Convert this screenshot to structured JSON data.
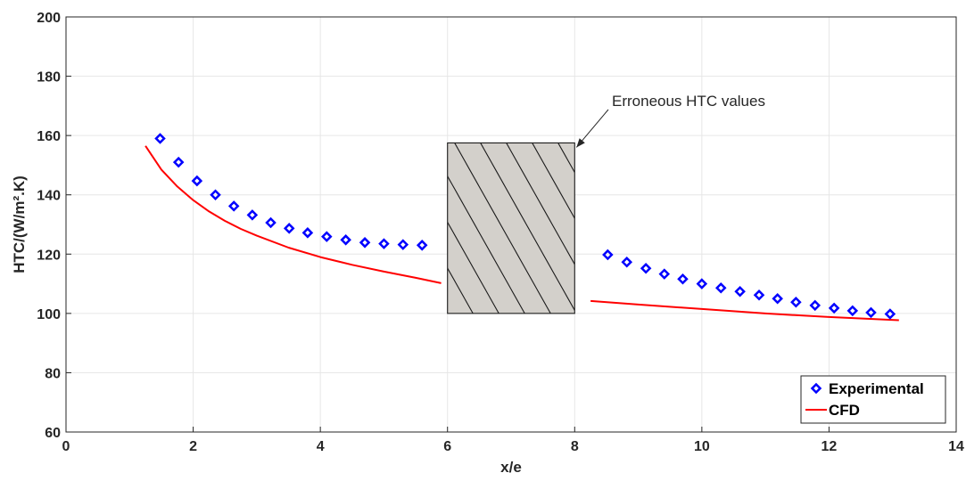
{
  "chart_data": {
    "type": "scatter",
    "xlabel": "x/e",
    "ylabel": "HTC/(W/m².K)",
    "xlim": [
      0,
      14
    ],
    "ylim": [
      60,
      200
    ],
    "xticks": [
      0,
      2,
      4,
      6,
      8,
      10,
      12,
      14
    ],
    "yticks": [
      60,
      80,
      100,
      120,
      140,
      160,
      180,
      200
    ],
    "grid": true,
    "legend_position": "bottom-right",
    "colors": {
      "experimental": "#0000ff",
      "cfd": "#ff0000",
      "hatch_fill": "#d3d0cb",
      "grid": "#e6e6e6"
    },
    "series": [
      {
        "name": "Experimental",
        "type": "scatter",
        "marker": "diamond",
        "x": [
          1.48,
          1.77,
          2.06,
          2.35,
          2.64,
          2.93,
          3.22,
          3.51,
          3.8,
          4.1,
          4.4,
          4.7,
          5.0,
          5.3,
          5.6,
          8.52,
          8.82,
          9.12,
          9.41,
          9.7,
          10.0,
          10.3,
          10.6,
          10.9,
          11.19,
          11.48,
          11.78,
          12.08,
          12.37,
          12.66,
          12.96
        ],
        "y": [
          159,
          151,
          144.7,
          140,
          136.2,
          133.2,
          130.6,
          128.7,
          127.2,
          125.9,
          124.8,
          123.9,
          123.5,
          123.2,
          123.0,
          119.8,
          117.3,
          115.2,
          113.3,
          111.6,
          110.0,
          108.6,
          107.4,
          106.2,
          105.0,
          103.8,
          102.7,
          101.8,
          100.9,
          100.3,
          99.8
        ]
      },
      {
        "name": "CFD",
        "type": "line",
        "x": [
          1.25,
          1.5,
          1.75,
          2.0,
          2.25,
          2.5,
          2.75,
          3.0,
          3.5,
          4.0,
          4.5,
          5.0,
          5.5,
          5.9,
          8.25,
          9.0,
          10.0,
          11.0,
          12.0,
          13.1
        ],
        "y": [
          156.5,
          148.5,
          142.8,
          138.2,
          134.4,
          131.2,
          128.5,
          126.2,
          122.2,
          119.0,
          116.4,
          114.1,
          112.0,
          110.2,
          104.2,
          103.0,
          101.5,
          100.0,
          98.8,
          97.7
        ],
        "segments": [
          [
            0,
            13
          ],
          [
            14,
            19
          ]
        ]
      }
    ],
    "annotations": [
      {
        "text": "Erroneous HTC values",
        "arrow_to": [
          8.0,
          157.5
        ]
      }
    ],
    "shaded_region": {
      "x": [
        6,
        8
      ],
      "y": [
        100,
        157.5
      ],
      "pattern": "diagonal-hatch"
    }
  }
}
